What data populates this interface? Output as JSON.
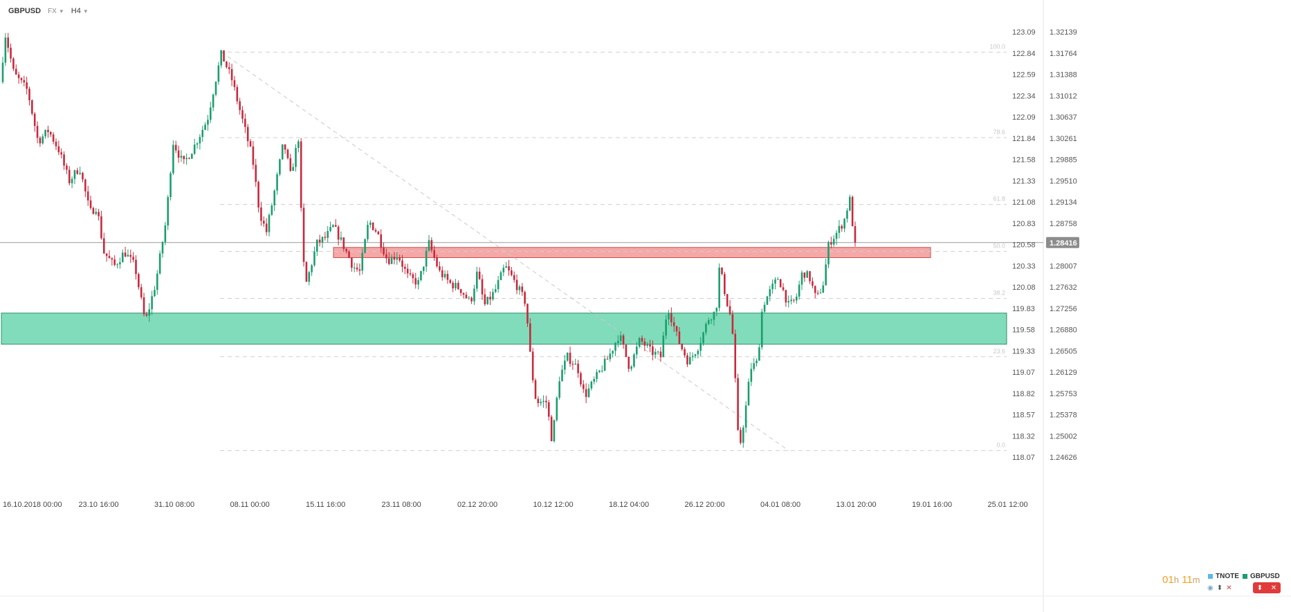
{
  "header": {
    "symbol": "GBPUSD",
    "market": "FX",
    "timeframe": "H4"
  },
  "countdown": {
    "hours": "01",
    "h": "h",
    "minutes": "11",
    "m": "m"
  },
  "legend": [
    {
      "label": "TNOTE",
      "color": "#5bb8e8"
    },
    {
      "label": "GBPUSD",
      "color": "#1a9e6e"
    }
  ],
  "colors": {
    "up": "#1a9e6e",
    "down": "#c8283c",
    "support_zone": "#4fcf9f",
    "resistance_zone": "#ee6e6e",
    "current_price_badge": "#8c8c8c"
  },
  "chart_data": {
    "type": "candlestick",
    "instrument": "GBPUSD",
    "timeframe": "H4",
    "current_price": "1.28416",
    "left_axis_ticks": [
      "123.09",
      "122.84",
      "122.59",
      "122.34",
      "122.09",
      "121.84",
      "121.58",
      "121.33",
      "121.08",
      "120.83",
      "120.58",
      "120.33",
      "120.08",
      "119.83",
      "119.58",
      "119.33",
      "119.07",
      "118.82",
      "118.57",
      "118.32",
      "118.07"
    ],
    "right_axis_ticks": [
      "1.32139",
      "1.31764",
      "1.31388",
      "1.31012",
      "1.30637",
      "1.30261",
      "1.29885",
      "1.29510",
      "1.29134",
      "1.28758",
      "1.28416",
      "1.28007",
      "1.27632",
      "1.27256",
      "1.26880",
      "1.26505",
      "1.26129",
      "1.25753",
      "1.25378",
      "1.25002",
      "1.24626"
    ],
    "x_labels": [
      "16.10.2018  00:00",
      "23.10  16:00",
      "31.10  08:00",
      "08.11  00:00",
      "15.11  16:00",
      "23.11  08:00",
      "02.12  20:00",
      "10.12  12:00",
      "18.12  04:00",
      "26.12  20:00",
      "04.01  08:00",
      "13.01  20:00",
      "19.01  16:00",
      "25.01  12:00"
    ],
    "fibonacci": {
      "high": 1.3178,
      "low": 1.2474,
      "levels": [
        {
          "label": "100.0",
          "price": 1.3178
        },
        {
          "label": "78.6",
          "price": 1.3027
        },
        {
          "label": "61.8",
          "price": 1.2909
        },
        {
          "label": "50.0",
          "price": 1.2826
        },
        {
          "label": "38.2",
          "price": 1.2743
        },
        {
          "label": "23.6",
          "price": 1.264
        },
        {
          "label": "0.0",
          "price": 1.2474
        }
      ]
    },
    "zones": [
      {
        "name": "resistance",
        "from": 1.2815,
        "to": 1.2833
      },
      {
        "name": "support",
        "from": 1.2662,
        "to": 1.2717
      }
    ],
    "price_path": [
      [
        0,
        1.3125
      ],
      [
        8,
        1.321
      ],
      [
        20,
        1.314
      ],
      [
        40,
        1.311
      ],
      [
        55,
        1.302
      ],
      [
        70,
        1.304
      ],
      [
        85,
        1.3005
      ],
      [
        100,
        1.295
      ],
      [
        115,
        1.2975
      ],
      [
        130,
        1.2895
      ],
      [
        140,
        1.2905
      ],
      [
        150,
        1.2825
      ],
      [
        165,
        1.28
      ],
      [
        180,
        1.2825
      ],
      [
        195,
        1.28
      ],
      [
        210,
        1.27
      ],
      [
        225,
        1.277
      ],
      [
        240,
        1.288
      ],
      [
        250,
        1.302
      ],
      [
        265,
        1.298
      ],
      [
        280,
        1.301
      ],
      [
        300,
        1.306
      ],
      [
        310,
        1.312
      ],
      [
        320,
        1.3175
      ],
      [
        335,
        1.313
      ],
      [
        350,
        1.306
      ],
      [
        365,
        1.299
      ],
      [
        375,
        1.2895
      ],
      [
        385,
        1.286
      ],
      [
        398,
        1.294
      ],
      [
        410,
        1.302
      ],
      [
        420,
        1.296
      ],
      [
        432,
        1.303
      ],
      [
        437,
        1.282
      ],
      [
        443,
        1.277
      ],
      [
        458,
        1.284
      ],
      [
        470,
        1.285
      ],
      [
        482,
        1.287
      ],
      [
        495,
        1.284
      ],
      [
        510,
        1.28
      ],
      [
        520,
        1.279
      ],
      [
        533,
        1.288
      ],
      [
        545,
        1.286
      ],
      [
        560,
        1.281
      ],
      [
        575,
        1.282
      ],
      [
        590,
        1.278
      ],
      [
        605,
        1.277
      ],
      [
        620,
        1.284
      ],
      [
        635,
        1.279
      ],
      [
        650,
        1.277
      ],
      [
        665,
        1.276
      ],
      [
        680,
        1.2735
      ],
      [
        690,
        1.279
      ],
      [
        700,
        1.273
      ],
      [
        715,
        1.2755
      ],
      [
        730,
        1.28
      ],
      [
        745,
        1.277
      ],
      [
        760,
        1.2735
      ],
      [
        768,
        1.262
      ],
      [
        775,
        1.256
      ],
      [
        790,
        1.256
      ],
      [
        798,
        1.249
      ],
      [
        808,
        1.26
      ],
      [
        820,
        1.264
      ],
      [
        835,
        1.262
      ],
      [
        845,
        1.257
      ],
      [
        860,
        1.26
      ],
      [
        880,
        1.264
      ],
      [
        895,
        1.268
      ],
      [
        910,
        1.262
      ],
      [
        925,
        1.267
      ],
      [
        940,
        1.265
      ],
      [
        955,
        1.264
      ],
      [
        965,
        1.273
      ],
      [
        980,
        1.267
      ],
      [
        995,
        1.263
      ],
      [
        1010,
        1.266
      ],
      [
        1025,
        1.271
      ],
      [
        1035,
        1.272
      ],
      [
        1040,
        1.28
      ],
      [
        1050,
        1.274
      ],
      [
        1058,
        1.27
      ],
      [
        1063,
        1.259
      ],
      [
        1068,
        1.247
      ],
      [
        1078,
        1.255
      ],
      [
        1085,
        1.262
      ],
      [
        1095,
        1.263
      ],
      [
        1102,
        1.273
      ],
      [
        1115,
        1.276
      ],
      [
        1125,
        1.278
      ],
      [
        1140,
        1.273
      ],
      [
        1150,
        1.274
      ],
      [
        1160,
        1.279
      ],
      [
        1170,
        1.278
      ],
      [
        1180,
        1.274
      ],
      [
        1190,
        1.277
      ],
      [
        1198,
        1.284
      ],
      [
        1210,
        1.286
      ],
      [
        1220,
        1.288
      ],
      [
        1228,
        1.292
      ],
      [
        1236,
        1.2835
      ]
    ]
  }
}
